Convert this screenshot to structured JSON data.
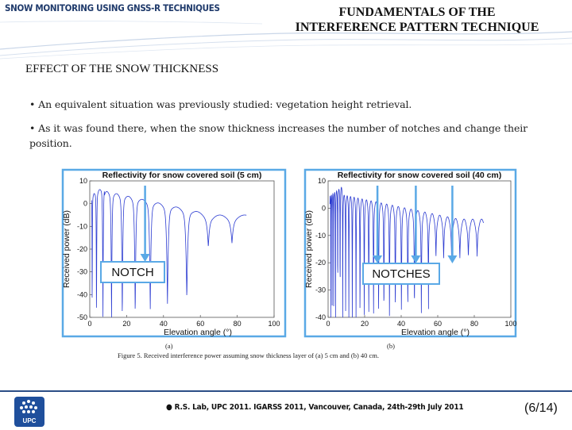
{
  "header": {
    "left_title": "SNOW MONITORING USING GNSS-R TECHNIQUES",
    "right_title_line1": "FUNDAMENTALS OF THE",
    "right_title_line2": "INTERFERENCE PATTERN TECHNIQUE"
  },
  "section_title": "EFFECT OF THE SNOW THICKNESS",
  "bullets": [
    "• An equivalent situation was previously studied: vegetation height retrieval.",
    "• As it was found there, when the snow thickness increases the number of notches and change their position."
  ],
  "chart_data": [
    {
      "type": "line",
      "title": "Reflectivity for snow covered soil (5 cm)",
      "xlabel": "Elevation angle (°)",
      "ylabel": "Received power (dB)",
      "xlim": [
        0,
        100
      ],
      "ylim": [
        -50,
        10
      ],
      "x_ticks": [
        "0",
        "20",
        "40",
        "60",
        "80",
        "100"
      ],
      "y_ticks": [
        "10",
        "0",
        "-10",
        "-20",
        "-30",
        "-40",
        "-50"
      ],
      "annotation": "NOTCH",
      "annotation_arrows_x": [
        30
      ],
      "sub_label": "(a)",
      "color": "#2b3bd1"
    },
    {
      "type": "line",
      "title": "Reflectivity for snow covered soil (40 cm)",
      "xlabel": "Elevation angle (°)",
      "ylabel": "Received power (dB)",
      "xlim": [
        0,
        100
      ],
      "ylim": [
        -40,
        10
      ],
      "x_ticks": [
        "0",
        "20",
        "40",
        "60",
        "80",
        "100"
      ],
      "y_ticks": [
        "10",
        "0",
        "-10",
        "-20",
        "-30",
        "-40"
      ],
      "annotation": "NOTCHES",
      "annotation_arrows_x": [
        27,
        48,
        68
      ],
      "sub_label": "(b)",
      "color": "#2b3bd1"
    }
  ],
  "figure_caption": "Figure 5. Received interference power assuming snow thickness layer of  (a) 5 cm and (b) 40 cm.",
  "footer": {
    "text": "● R.S. Lab, UPC 2011.  IGARSS 2011,  Vancouver, Canada, 24th-29th July 2011",
    "page": "(6/14)",
    "logo_text": "UPC"
  },
  "colors": {
    "accent": "#1f3a6b",
    "arrow": "#5aa9e6",
    "curve": "#2b3bd1"
  }
}
